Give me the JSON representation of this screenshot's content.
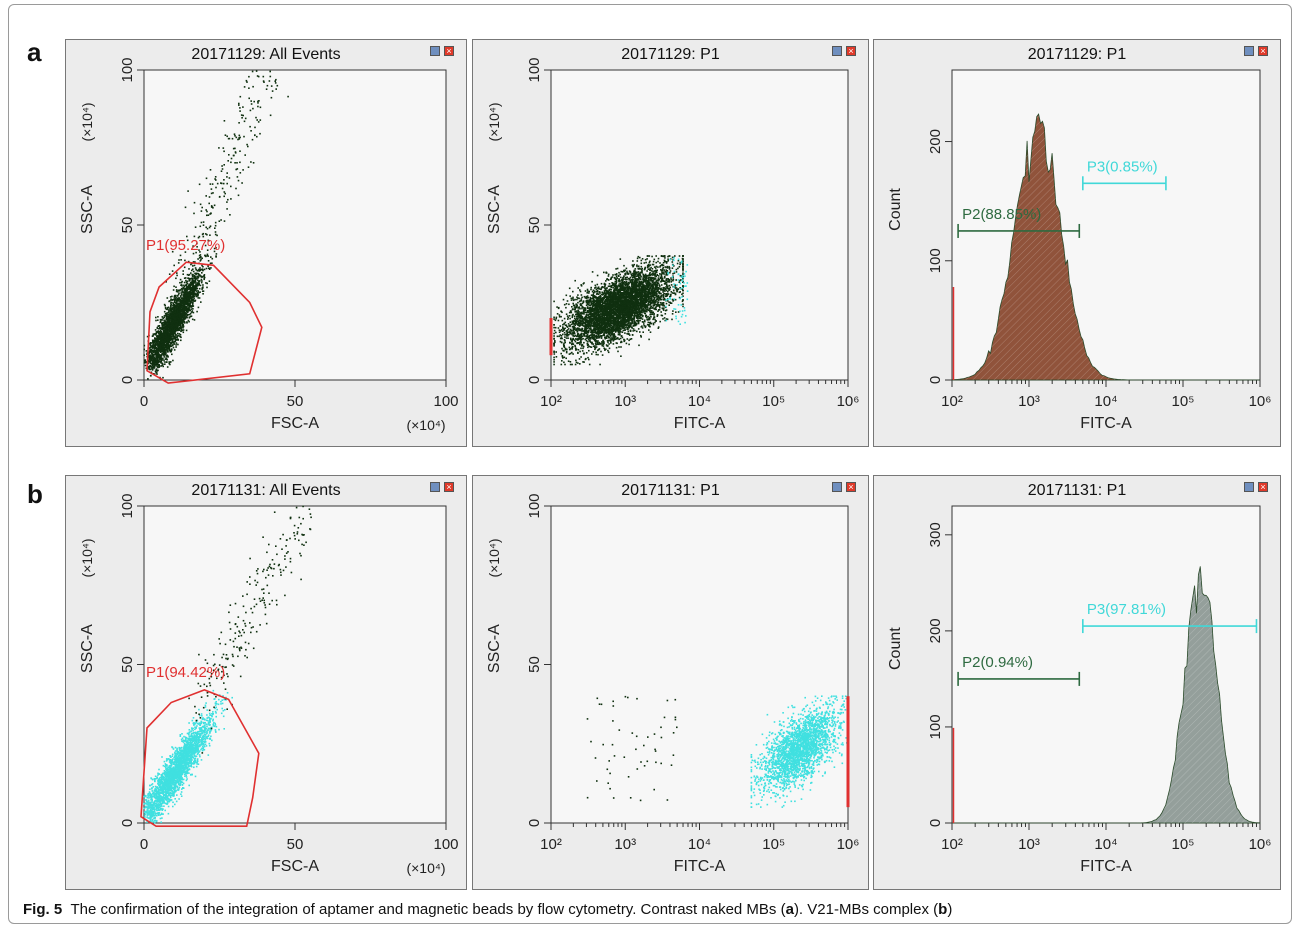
{
  "rows": [
    {
      "letter": "a"
    },
    {
      "letter": "b"
    }
  ],
  "caption": {
    "prefix": "Fig. 5",
    "text_1": "The confirmation of the integration of aptamer and magnetic beads by flow cytometry. Contrast naked MBs (",
    "ref_a": "a",
    "text_2": "). V21-MBs complex (",
    "ref_b": "b",
    "text_3": ")"
  },
  "colors": {
    "panel_bg": "#ececec",
    "plot_bg": "#f7f7f7",
    "gate_red": "#e03030",
    "events_dark": "#103010",
    "events_cyan": "#40e0e0",
    "hist_brown": "#8a4a30",
    "hist_gray": "#8e9a96",
    "marker_green": "#2e6a40",
    "marker_cyan": "#40d8d8"
  },
  "chart_data": [
    {
      "id": "a1",
      "type": "scatter",
      "title": "20171129: All Events",
      "xlabel": "FSC-A",
      "ylabel": "SSC-A",
      "x_unit": "(×10⁴)",
      "y_unit": "(×10⁴)",
      "xlim": [
        0,
        100
      ],
      "ylim": [
        0,
        100
      ],
      "x_ticks": [
        "0",
        "50",
        "100"
      ],
      "y_ticks": [
        "0",
        "50",
        "100"
      ],
      "gate": {
        "label": "P1(95.27%)",
        "polygon": [
          [
            1,
            3
          ],
          [
            2,
            22
          ],
          [
            5,
            30
          ],
          [
            14,
            38
          ],
          [
            23,
            37
          ],
          [
            35,
            25
          ],
          [
            39,
            17
          ],
          [
            35,
            2
          ],
          [
            8,
            -1
          ]
        ]
      },
      "population": {
        "color": "dark",
        "center": [
          8,
          15
        ],
        "slope": 2.1
      },
      "cluster": {
        "color": "dark",
        "count": 2600,
        "x_range": [
          3,
          22
        ],
        "y_range": [
          6,
          41
        ]
      },
      "tail": {
        "color": "dark",
        "count": 260,
        "x_range": [
          12,
          42
        ],
        "y_range": [
          30,
          100
        ]
      }
    },
    {
      "id": "a2",
      "type": "scatter",
      "title": "20171129: P1",
      "xlabel": "FITC-A",
      "ylabel": "SSC-A",
      "y_unit": "(×10⁴)",
      "xscale": "log",
      "xlim": [
        100,
        1000000
      ],
      "ylim": [
        0,
        100
      ],
      "x_ticks": [
        "10²",
        "10³",
        "10⁴",
        "10⁵",
        "10⁶"
      ],
      "y_ticks": [
        "0",
        "50",
        "100"
      ],
      "cluster": {
        "color": "dark",
        "count": 5200,
        "x_range": [
          110,
          6000
        ],
        "y_range": [
          5,
          40
        ]
      },
      "fringe": {
        "color": "cyan",
        "count": 60,
        "x_range": [
          3500,
          7000
        ],
        "y_range": [
          18,
          40
        ]
      },
      "axis_events": {
        "x": 100,
        "y_range": [
          8,
          20
        ]
      }
    },
    {
      "id": "a3",
      "type": "histogram",
      "title": "20171129: P1",
      "xlabel": "FITC-A",
      "ylabel": "Count",
      "xscale": "log",
      "xlim": [
        100,
        1000000
      ],
      "ylim": [
        0,
        260
      ],
      "x_ticks": [
        "10²",
        "10³",
        "10⁴",
        "10⁵",
        "10⁶"
      ],
      "y_ticks": [
        "0",
        "100",
        "200"
      ],
      "fill": "brown",
      "peak_x": 1300,
      "peak_y": 210,
      "log_sd": 0.3,
      "markers": [
        {
          "label": "P2(88.85%)",
          "x_range": [
            120,
            4500
          ],
          "y": 125,
          "color": "green"
        },
        {
          "label": "P3(0.85%)",
          "x_range": [
            5000,
            60000
          ],
          "y": 165,
          "color": "cyan"
        }
      ]
    },
    {
      "id": "b1",
      "type": "scatter",
      "title": "20171131: All Events",
      "xlabel": "FSC-A",
      "ylabel": "SSC-A",
      "x_unit": "(×10⁴)",
      "y_unit": "(×10⁴)",
      "xlim": [
        0,
        100
      ],
      "ylim": [
        0,
        100
      ],
      "x_ticks": [
        "0",
        "50",
        "100"
      ],
      "y_ticks": [
        "0",
        "50",
        "100"
      ],
      "gate": {
        "label": "P1(94.42%)",
        "polygon": [
          [
            -1,
            2
          ],
          [
            1,
            30
          ],
          [
            9,
            38
          ],
          [
            20,
            42
          ],
          [
            28,
            39
          ],
          [
            38,
            22
          ],
          [
            36,
            8
          ],
          [
            34,
            -1
          ],
          [
            4,
            -1
          ]
        ]
      },
      "population": {
        "color": "cyan",
        "center": [
          12,
          22
        ],
        "slope": 1.8
      },
      "cluster": {
        "color": "cyan",
        "count": 2500,
        "x_range": [
          2,
          27
        ],
        "y_range": [
          4,
          40
        ]
      },
      "tail": {
        "color": "dark",
        "count": 230,
        "x_range": [
          18,
          55
        ],
        "y_range": [
          35,
          100
        ]
      }
    },
    {
      "id": "b2",
      "type": "scatter",
      "title": "20171131: P1",
      "xlabel": "FITC-A",
      "ylabel": "SSC-A",
      "y_unit": "(×10⁴)",
      "xscale": "log",
      "xlim": [
        100,
        1000000
      ],
      "ylim": [
        0,
        100
      ],
      "x_ticks": [
        "10²",
        "10³",
        "10⁴",
        "10⁵",
        "10⁶"
      ],
      "y_ticks": [
        "0",
        "50",
        "100"
      ],
      "cluster": {
        "color": "cyan",
        "count": 2300,
        "x_range": [
          50000,
          1000000
        ],
        "y_range": [
          5,
          40
        ]
      },
      "sparse": {
        "color": "dark",
        "count": 55,
        "x_range": [
          300,
          5000
        ],
        "y_range": [
          6,
          40
        ]
      },
      "axis_events": {
        "x": 1000000,
        "y_range": [
          5,
          40
        ]
      }
    },
    {
      "id": "b3",
      "type": "histogram",
      "title": "20171131: P1",
      "xlabel": "FITC-A",
      "ylabel": "Count",
      "xscale": "log",
      "xlim": [
        100,
        1000000
      ],
      "ylim": [
        0,
        330
      ],
      "x_ticks": [
        "10²",
        "10³",
        "10⁴",
        "10⁵",
        "10⁶"
      ],
      "y_ticks": [
        "0",
        "100",
        "200",
        "300"
      ],
      "fill": "gray",
      "peak_x": 170000,
      "peak_y": 265,
      "log_sd": 0.2,
      "markers": [
        {
          "label": "P2(0.94%)",
          "x_range": [
            120,
            4500
          ],
          "y": 150,
          "color": "green"
        },
        {
          "label": "P3(97.81%)",
          "x_range": [
            5000,
            900000
          ],
          "y": 205,
          "color": "cyan"
        }
      ]
    }
  ]
}
